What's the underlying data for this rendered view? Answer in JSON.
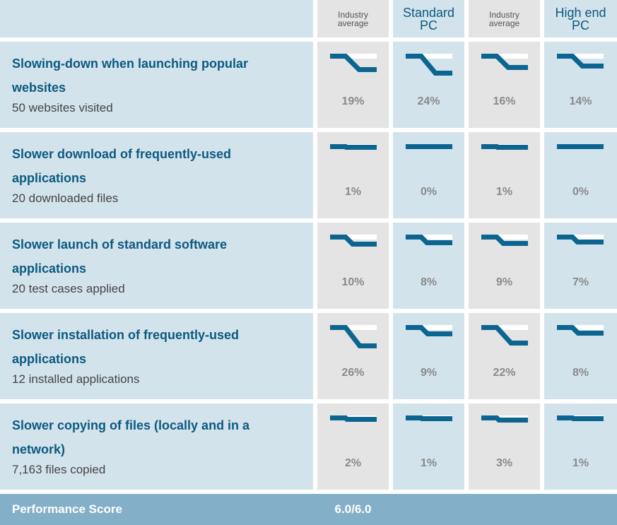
{
  "header": {
    "columns": [
      {
        "label": "Industry average",
        "style": "small"
      },
      {
        "label": "Standard PC",
        "style": "big"
      },
      {
        "label": "Industry average",
        "style": "small"
      },
      {
        "label": "High end PC",
        "style": "big"
      }
    ]
  },
  "rows": [
    {
      "title": "Slowing-down when launching popular websites",
      "subtitle": "50 websites visited",
      "values": [
        "19%",
        "24%",
        "16%",
        "14%"
      ],
      "numbers": [
        19,
        24,
        16,
        14
      ]
    },
    {
      "title": "Slower download of frequently-used applications",
      "subtitle": "20 downloaded files",
      "values": [
        "1%",
        "0%",
        "1%",
        "0%"
      ],
      "numbers": [
        1,
        0,
        1,
        0
      ]
    },
    {
      "title": "Slower launch of standard software applications",
      "subtitle": "20 test cases applied",
      "values": [
        "10%",
        "8%",
        "9%",
        "7%"
      ],
      "numbers": [
        10,
        8,
        9,
        7
      ]
    },
    {
      "title": "Slower installation of frequently-used applications",
      "subtitle": "12 installed applications",
      "values": [
        "26%",
        "9%",
        "22%",
        "8%"
      ],
      "numbers": [
        26,
        9,
        22,
        8
      ]
    },
    {
      "title": "Slower copying of files (locally and in a network)",
      "subtitle": "7,163 files copied",
      "values": [
        "2%",
        "1%",
        "3%",
        "1%"
      ],
      "numbers": [
        2,
        1,
        3,
        1
      ]
    }
  ],
  "footer": {
    "label": "Performance Score",
    "score": "6.0/6.0"
  },
  "colors": {
    "line": "#0c6591",
    "gray": "#e4e4e4",
    "blue": "#d3e3ec",
    "footer": "#83b0c8"
  }
}
